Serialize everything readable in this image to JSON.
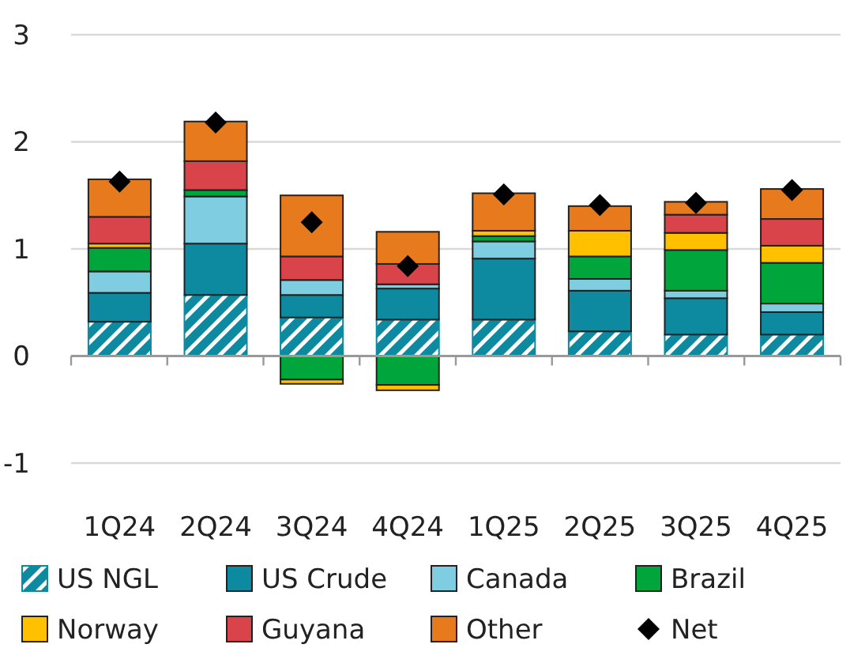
{
  "chart_data": {
    "type": "bar",
    "stacked": true,
    "categories": [
      "1Q24",
      "2Q24",
      "3Q24",
      "4Q24",
      "1Q25",
      "2Q25",
      "3Q25",
      "4Q25"
    ],
    "series": [
      {
        "name": "US NGL",
        "color": "#0e8aa0",
        "values": [
          0.32,
          0.57,
          0.36,
          0.34,
          0.34,
          0.23,
          0.2,
          0.2
        ]
      },
      {
        "name": "US Crude",
        "color": "#0e8aa0",
        "values": [
          0.27,
          0.48,
          0.21,
          0.29,
          0.57,
          0.38,
          0.34,
          0.21
        ]
      },
      {
        "name": "Canada",
        "color": "#7fcde0",
        "values": [
          0.2,
          0.44,
          0.14,
          0.04,
          0.16,
          0.11,
          0.07,
          0.08
        ]
      },
      {
        "name": "Brazil",
        "color": "#00a63c",
        "values": [
          0.22,
          0.06,
          -0.22,
          -0.27,
          0.05,
          0.21,
          0.38,
          0.38
        ]
      },
      {
        "name": "Norway",
        "color": "#ffc000",
        "values": [
          0.04,
          0,
          -0.04,
          -0.05,
          0.05,
          0.24,
          0.16,
          0.16
        ]
      },
      {
        "name": "Guyana",
        "color": "#d9444b",
        "values": [
          0.25,
          0.27,
          0.22,
          0.19,
          0,
          0,
          0.17,
          0.25
        ]
      },
      {
        "name": "Other",
        "color": "#e87a1e",
        "values": [
          0.35,
          0.37,
          0.57,
          0.3,
          0.35,
          0.23,
          0.12,
          0.28
        ]
      },
      {
        "name": "Net",
        "type": "scatter",
        "marker": "diamond",
        "color": "#000000",
        "x": [
          "1Q24",
          "2Q24",
          "3Q24",
          "4Q24",
          "1Q25",
          "2Q25",
          "3Q25",
          "4Q25"
        ],
        "values": [
          1.63,
          2.18,
          1.25,
          0.84,
          1.51,
          1.41,
          1.43,
          1.55
        ]
      }
    ],
    "ylim": [
      -1,
      3
    ],
    "yticks": [
      -1,
      0,
      1,
      2,
      3
    ],
    "grid": "y",
    "legend": "bottom"
  }
}
